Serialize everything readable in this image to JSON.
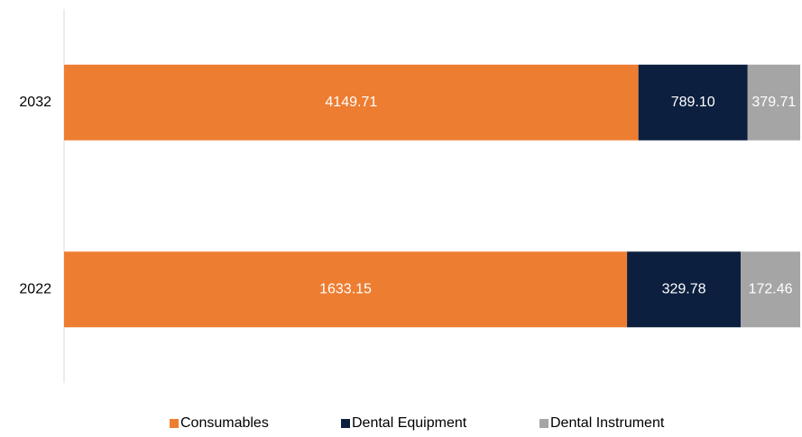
{
  "chart_data": {
    "type": "bar",
    "orientation": "horizontal",
    "stacking": "percent",
    "categories": [
      "2032",
      "2022"
    ],
    "series": [
      {
        "name": "Consumables",
        "color": "#ED7D31",
        "values": [
          4149.71,
          1633.15
        ],
        "value_labels": [
          "4149.71",
          "1633.15"
        ]
      },
      {
        "name": "Dental Equipment",
        "color": "#0C1F3F",
        "values": [
          789.1,
          329.78
        ],
        "value_labels": [
          "789.10",
          "329.78"
        ]
      },
      {
        "name": "Dental Instrument",
        "color": "#A5A5A5",
        "values": [
          379.71,
          172.46
        ],
        "value_labels": [
          "379.71",
          "172.46"
        ]
      }
    ],
    "legend": "bottom"
  }
}
